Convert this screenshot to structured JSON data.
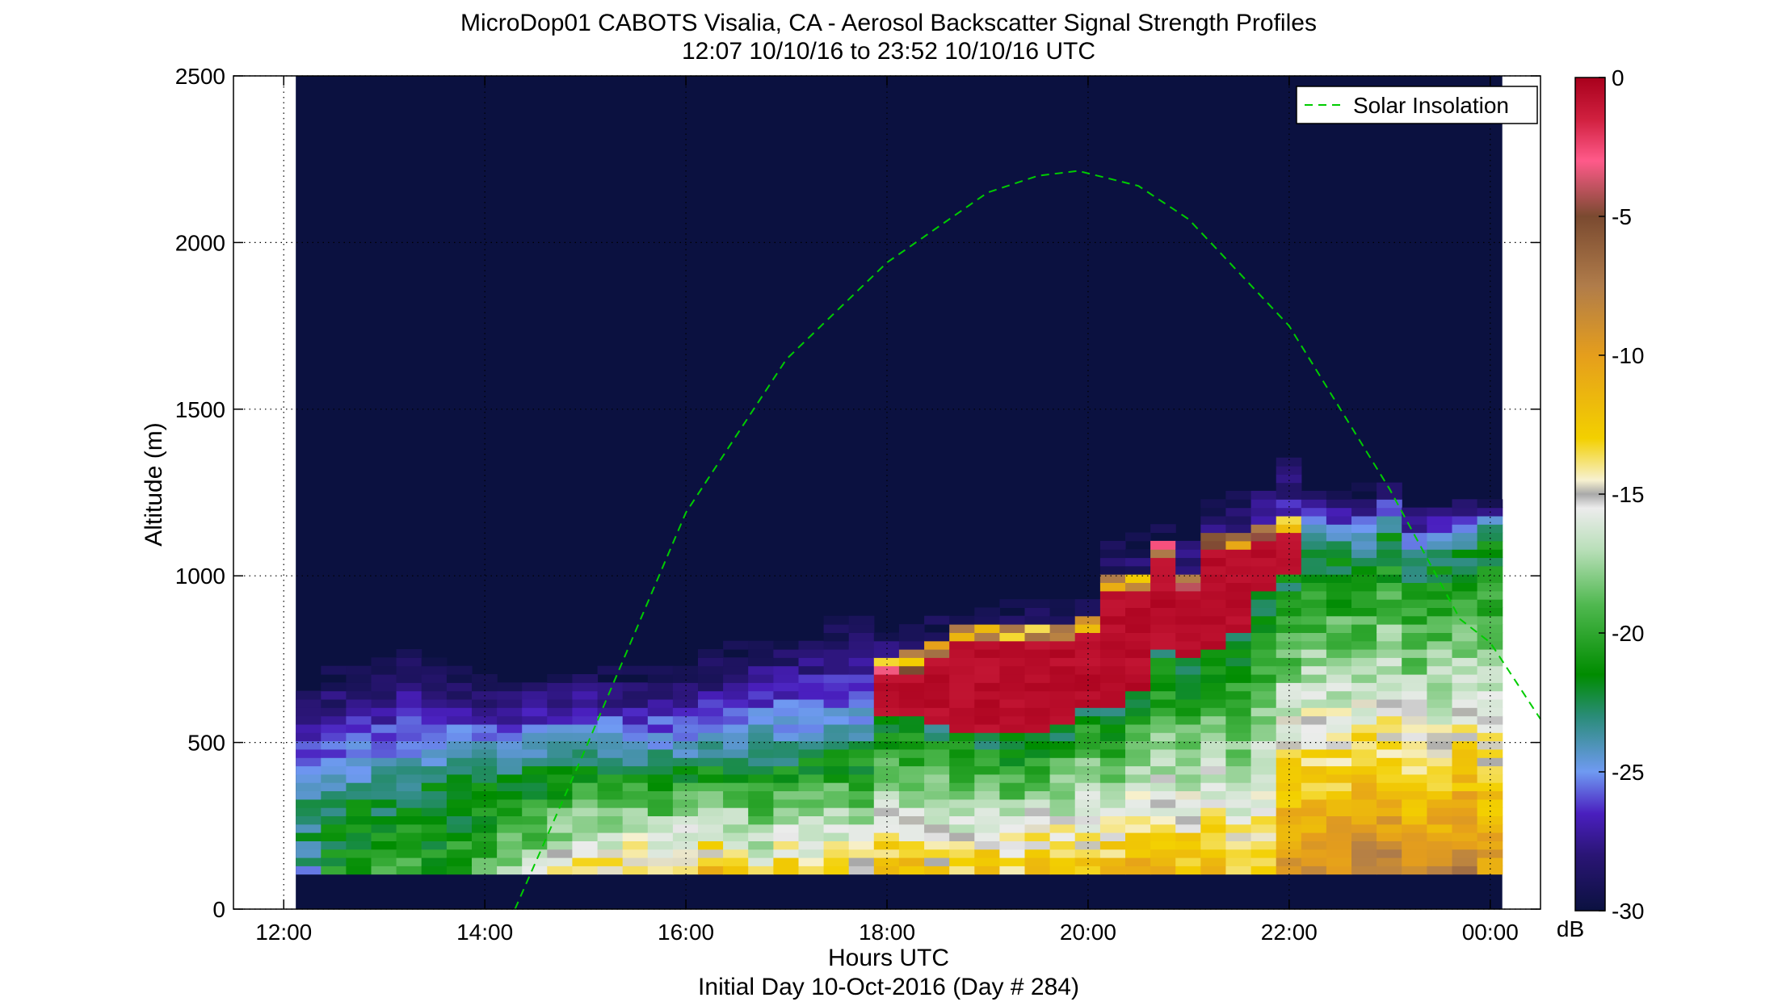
{
  "chart_data": {
    "type": "heatmap",
    "title": "MicroDop01 CABOTS Visalia, CA - Aerosol Backscatter Signal Strength Profiles",
    "subtitle": "12:07 10/10/16 to 23:52 10/10/16  UTC",
    "xlabel": "Hours UTC",
    "xlabel_note": "Initial Day 10-Oct-2016 (Day # 284)",
    "ylabel": "Altitude (m)",
    "x_range_hours": [
      11.5,
      24.5
    ],
    "x_ticks": [
      {
        "hour": 12,
        "label": "12:00"
      },
      {
        "hour": 14,
        "label": "14:00"
      },
      {
        "hour": 16,
        "label": "16:00"
      },
      {
        "hour": 18,
        "label": "18:00"
      },
      {
        "hour": 20,
        "label": "20:00"
      },
      {
        "hour": 22,
        "label": "22:00"
      },
      {
        "hour": 24,
        "label": "00:00"
      }
    ],
    "y_range_m": [
      0,
      2500
    ],
    "y_ticks": [
      {
        "value": 0,
        "label": "0"
      },
      {
        "value": 500,
        "label": "500"
      },
      {
        "value": 1000,
        "label": "1000"
      },
      {
        "value": 1500,
        "label": "1500"
      },
      {
        "value": 2000,
        "label": "2000"
      },
      {
        "value": 2500,
        "label": "2500"
      }
    ],
    "grid": "dotted",
    "data_start_hour": 12.12,
    "data_end_hour": 23.87,
    "column_width_hours": 0.25,
    "bin_height_m": 25,
    "lowest_bin_m": 105,
    "background_db": -30,
    "profiles": [
      {
        "hour": 12.12,
        "top_m": 700,
        "mix_top_m": 300,
        "surface_db": -24
      },
      {
        "hour": 12.37,
        "top_m": 720,
        "mix_top_m": 310,
        "surface_db": -21
      },
      {
        "hour": 12.62,
        "top_m": 740,
        "mix_top_m": 320,
        "surface_db": -20
      },
      {
        "hour": 12.87,
        "top_m": 760,
        "mix_top_m": 330,
        "surface_db": -20
      },
      {
        "hour": 13.12,
        "top_m": 780,
        "mix_top_m": 360,
        "surface_db": -20
      },
      {
        "hour": 13.37,
        "top_m": 760,
        "mix_top_m": 380,
        "surface_db": -21
      },
      {
        "hour": 13.62,
        "top_m": 730,
        "mix_top_m": 390,
        "surface_db": -20
      },
      {
        "hour": 13.87,
        "top_m": 700,
        "mix_top_m": 400,
        "surface_db": -19
      },
      {
        "hour": 14.12,
        "top_m": 690,
        "mix_top_m": 410,
        "surface_db": -18
      },
      {
        "hour": 14.37,
        "top_m": 700,
        "mix_top_m": 420,
        "surface_db": -17
      },
      {
        "hour": 14.62,
        "top_m": 710,
        "mix_top_m": 430,
        "surface_db": -15
      },
      {
        "hour": 14.87,
        "top_m": 720,
        "mix_top_m": 430,
        "surface_db": -13
      },
      {
        "hour": 15.12,
        "top_m": 720,
        "mix_top_m": 430,
        "surface_db": -14
      },
      {
        "hour": 15.37,
        "top_m": 710,
        "mix_top_m": 430,
        "surface_db": -13
      },
      {
        "hour": 15.62,
        "top_m": 710,
        "mix_top_m": 430,
        "surface_db": -14
      },
      {
        "hour": 15.87,
        "top_m": 730,
        "mix_top_m": 430,
        "surface_db": -13
      },
      {
        "hour": 16.12,
        "top_m": 760,
        "mix_top_m": 440,
        "surface_db": -12
      },
      {
        "hour": 16.37,
        "top_m": 790,
        "mix_top_m": 450,
        "surface_db": -13
      },
      {
        "hour": 16.62,
        "top_m": 800,
        "mix_top_m": 450,
        "surface_db": -15
      },
      {
        "hour": 16.87,
        "top_m": 820,
        "mix_top_m": 450,
        "surface_db": -13
      },
      {
        "hour": 17.12,
        "top_m": 840,
        "mix_top_m": 460,
        "surface_db": -14
      },
      {
        "hour": 17.37,
        "top_m": 860,
        "mix_top_m": 470,
        "surface_db": -13
      },
      {
        "hour": 17.62,
        "top_m": 860,
        "mix_top_m": 480,
        "surface_db": -14
      },
      {
        "hour": 17.87,
        "top_m": 860,
        "mix_top_m": 560,
        "surface_db": -12,
        "red_top_m": 740
      },
      {
        "hour": 18.12,
        "top_m": 860,
        "mix_top_m": 560,
        "surface_db": -12,
        "red_top_m": 760
      },
      {
        "hour": 18.37,
        "top_m": 880,
        "mix_top_m": 540,
        "surface_db": -13,
        "red_top_m": 790
      },
      {
        "hour": 18.62,
        "top_m": 900,
        "mix_top_m": 520,
        "surface_db": -13,
        "red_top_m": 840
      },
      {
        "hour": 18.87,
        "top_m": 920,
        "mix_top_m": 510,
        "surface_db": -12,
        "red_top_m": 850
      },
      {
        "hour": 19.12,
        "top_m": 920,
        "mix_top_m": 510,
        "surface_db": -13,
        "red_top_m": 850
      },
      {
        "hour": 19.37,
        "top_m": 920,
        "mix_top_m": 510,
        "surface_db": -12,
        "red_top_m": 850
      },
      {
        "hour": 19.62,
        "top_m": 930,
        "mix_top_m": 540,
        "surface_db": -12,
        "red_top_m": 850
      },
      {
        "hour": 19.87,
        "top_m": 960,
        "mix_top_m": 600,
        "surface_db": -12,
        "red_top_m": 880
      },
      {
        "hour": 20.12,
        "top_m": 1100,
        "mix_top_m": 600,
        "surface_db": -12,
        "red_top_m": 1000
      },
      {
        "hour": 20.37,
        "top_m": 1120,
        "mix_top_m": 640,
        "surface_db": -11,
        "red_top_m": 1000
      },
      {
        "hour": 20.62,
        "top_m": 1150,
        "mix_top_m": 760,
        "surface_db": -12,
        "red_top_m": 1090
      },
      {
        "hour": 20.87,
        "top_m": 1150,
        "mix_top_m": 740,
        "surface_db": -12,
        "red_top_m": 1000
      },
      {
        "hour": 21.12,
        "top_m": 1250,
        "mix_top_m": 780,
        "surface_db": -12,
        "red_top_m": 1130
      },
      {
        "hour": 21.37,
        "top_m": 1250,
        "mix_top_m": 830,
        "surface_db": -13,
        "red_top_m": 1120
      },
      {
        "hour": 21.62,
        "top_m": 1290,
        "mix_top_m": 950,
        "surface_db": -13,
        "red_top_m": 1150
      },
      {
        "hour": 21.87,
        "top_m": 1360,
        "mix_top_m": 1000,
        "surface_db": -9,
        "red_top_m": 1170
      },
      {
        "hour": 22.12,
        "top_m": 1250,
        "mix_top_m": 1080,
        "surface_db": -9
      },
      {
        "hour": 22.37,
        "top_m": 1250,
        "mix_top_m": 1080,
        "surface_db": -9
      },
      {
        "hour": 22.62,
        "top_m": 1260,
        "mix_top_m": 1060,
        "surface_db": -8
      },
      {
        "hour": 22.87,
        "top_m": 1290,
        "mix_top_m": 1120,
        "surface_db": -8
      },
      {
        "hour": 23.12,
        "top_m": 1220,
        "mix_top_m": 1020,
        "surface_db": -9
      },
      {
        "hour": 23.37,
        "top_m": 1230,
        "mix_top_m": 1050,
        "surface_db": -9
      },
      {
        "hour": 23.62,
        "top_m": 1230,
        "mix_top_m": 1080,
        "surface_db": -8
      },
      {
        "hour": 23.87,
        "top_m": 1220,
        "mix_top_m": 1120,
        "surface_db": -10
      }
    ],
    "overlay_series": {
      "name": "Solar Insolation",
      "style": "dashed",
      "color": "#00cc00",
      "x": [
        14.3,
        15.0,
        16.0,
        17.0,
        18.0,
        19.0,
        19.5,
        19.9,
        20.5,
        21.0,
        22.0,
        23.0,
        23.7,
        24.0,
        24.5
      ],
      "y": [
        0,
        480,
        1190,
        1650,
        1940,
        2150,
        2200,
        2215,
        2170,
        2070,
        1750,
        1260,
        870,
        800,
        570
      ]
    },
    "legend": {
      "entry": "Solar Insolation",
      "position": "top-right"
    },
    "colorbar": {
      "label": "dB",
      "range": [
        -30,
        0
      ],
      "ticks": [
        0,
        -5,
        -10,
        -15,
        -20,
        -25,
        -30
      ],
      "tick_labels": [
        "0",
        "-5",
        "-10",
        "-15",
        "-20",
        "-25",
        "-30"
      ],
      "stops": [
        {
          "db": -30,
          "color": "#0b1140"
        },
        {
          "db": -28,
          "color": "#2a1575"
        },
        {
          "db": -26.5,
          "color": "#4a1fbf"
        },
        {
          "db": -25,
          "color": "#6f9af2"
        },
        {
          "db": -23,
          "color": "#2a8c78"
        },
        {
          "db": -21.5,
          "color": "#008c00"
        },
        {
          "db": -19,
          "color": "#4fb84f"
        },
        {
          "db": -17,
          "color": "#b9dfb9"
        },
        {
          "db": -15.5,
          "color": "#ececec"
        },
        {
          "db": -15,
          "color": "#a9a9a9"
        },
        {
          "db": -14.5,
          "color": "#f7f1d0"
        },
        {
          "db": -13,
          "color": "#f3d000"
        },
        {
          "db": -10,
          "color": "#e59e1c"
        },
        {
          "db": -7.5,
          "color": "#b07c4a"
        },
        {
          "db": -5,
          "color": "#7a4a30"
        },
        {
          "db": -3,
          "color": "#ff5a8a"
        },
        {
          "db": -1.5,
          "color": "#d0203f"
        },
        {
          "db": 0,
          "color": "#a8001c"
        }
      ]
    }
  }
}
